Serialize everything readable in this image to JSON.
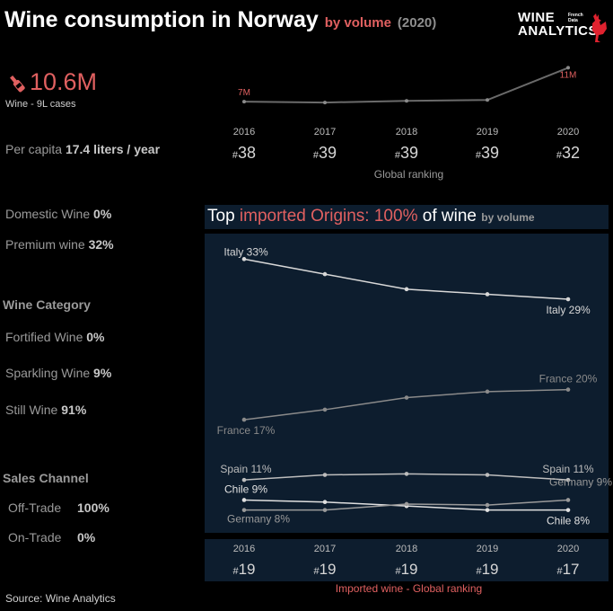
{
  "header": {
    "title": "Wine consumption in Norway",
    "subtitle_measure": "by volume",
    "subtitle_year": "(2020)"
  },
  "logo": {
    "line1": "WINE",
    "line2": "ANALYTICS",
    "tagline": "French Data"
  },
  "kpi": {
    "volume": "10.6M",
    "volume_caption": "Wine - 9L cases",
    "per_capita_label": "Per capita",
    "per_capita_value": "17.4 liters / year"
  },
  "stats": {
    "domestic_label": "Domestic Wine",
    "domestic_value": "0%",
    "premium_label": "Premium wine",
    "premium_value": "32%"
  },
  "wine_category": {
    "heading": "Wine Category",
    "items": [
      {
        "label": "Fortified Wine",
        "value": "0%"
      },
      {
        "label": "Sparkling Wine",
        "value": "9%"
      },
      {
        "label": "Still Wine",
        "value": "91%"
      }
    ]
  },
  "sales_channel": {
    "heading": "Sales Channel",
    "items": [
      {
        "label": "Off-Trade",
        "value": "100%"
      },
      {
        "label": "On-Trade",
        "value": "0%"
      }
    ]
  },
  "ranking": {
    "caption": "Global ranking",
    "ranks": [
      "38",
      "39",
      "39",
      "39",
      "32"
    ],
    "imported_caption": "Imported wine - Global ranking",
    "imported_ranks": [
      "19",
      "19",
      "19",
      "19",
      "17"
    ]
  },
  "panel": {
    "title_start": "Top",
    "title_red": "imported Origins: 100%",
    "title_end": "of wine",
    "title_measure": "by volume"
  },
  "source": "Source: Wine Analytics",
  "colors": {
    "accent_red": "#e06060",
    "panel_bg": "#0d1d2e",
    "line_light": "#d8d8d8",
    "line_grey": "#8a8a8a"
  },
  "chart_data": [
    {
      "type": "line",
      "x": [
        2016,
        2017,
        2018,
        2019,
        2020
      ],
      "series": [
        {
          "values": [
            7,
            6.9,
            7.1,
            7.2,
            11
          ]
        }
      ],
      "labels": {
        "first": "7M",
        "last": "11M"
      },
      "ylim": [
        5,
        12
      ]
    },
    {
      "type": "line",
      "x": [
        2016,
        2017,
        2018,
        2019,
        2020
      ],
      "ylim": [
        6,
        35
      ],
      "series": [
        {
          "name": "Italy",
          "values": [
            33,
            31.5,
            30,
            29.5,
            29
          ],
          "first_label": "Italy 33%",
          "last_label": "Italy 29%",
          "color": "#d8d8d8"
        },
        {
          "name": "France",
          "values": [
            17,
            18,
            19.2,
            19.8,
            20
          ],
          "first_label": "France 17%",
          "last_label": "France 20%",
          "color": "#8a8a8a"
        },
        {
          "name": "Spain",
          "values": [
            11,
            11.5,
            11.6,
            11.5,
            11
          ],
          "first_label": "Spain 11%",
          "last_label": "Spain 11%",
          "color": "#bdbdbd"
        },
        {
          "name": "Chile",
          "values": [
            9,
            8.8,
            8.4,
            8,
            8
          ],
          "first_label": "Chile 9%",
          "last_label": "Chile 8%",
          "color": "#e0e0e0"
        },
        {
          "name": "Germany",
          "values": [
            8,
            8,
            8.6,
            8.5,
            9
          ],
          "first_label": "Germany 8%",
          "last_label": "Germany 9%",
          "color": "#9a9a9a"
        }
      ]
    }
  ]
}
